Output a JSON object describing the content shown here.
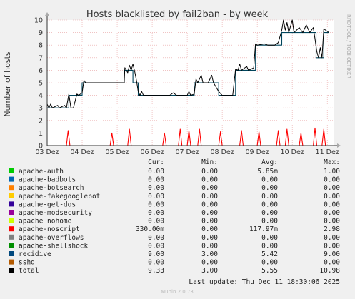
{
  "chart_data": {
    "type": "line",
    "title": "Hosts blacklisted by fail2ban - by week",
    "ylabel": "Number of hosts",
    "side_label": "RRDTOOL / TOBI OETIKER",
    "ylim": [
      0,
      10
    ],
    "yticks": [
      "0",
      "1",
      "2",
      "3",
      "4",
      "5",
      "6",
      "7",
      "8",
      "9",
      "10"
    ],
    "xlim": [
      0,
      8.2
    ],
    "xticks": [
      "03 Dez",
      "04 Dez",
      "05 Dez",
      "06 Dez",
      "07 Dez",
      "08 Dez",
      "09 Dez",
      "10 Dez",
      "11 Dez"
    ],
    "grid": true,
    "series": [
      {
        "name": "recidive",
        "color": "#00455c",
        "points": [
          [
            0,
            3
          ],
          [
            0.62,
            3
          ],
          [
            0.62,
            4
          ],
          [
            1.0,
            4
          ],
          [
            1.0,
            5
          ],
          [
            2.2,
            5
          ],
          [
            2.2,
            6
          ],
          [
            2.45,
            6
          ],
          [
            2.45,
            5
          ],
          [
            2.6,
            5
          ],
          [
            2.6,
            4
          ],
          [
            3.5,
            4
          ],
          [
            3.5,
            4
          ],
          [
            4.2,
            4
          ],
          [
            4.2,
            5
          ],
          [
            4.9,
            5
          ],
          [
            4.9,
            4
          ],
          [
            5.38,
            4
          ],
          [
            5.38,
            6
          ],
          [
            5.95,
            6
          ],
          [
            5.95,
            8
          ],
          [
            6.7,
            8
          ],
          [
            6.7,
            9
          ],
          [
            7.68,
            9
          ],
          [
            7.68,
            7
          ],
          [
            7.9,
            7
          ],
          [
            7.9,
            9
          ],
          [
            8.05,
            9
          ]
        ]
      },
      {
        "name": "total",
        "color": "#000000",
        "points": [
          [
            0,
            3.3
          ],
          [
            0.05,
            3
          ],
          [
            0.1,
            3.3
          ],
          [
            0.15,
            3
          ],
          [
            0.3,
            3.2
          ],
          [
            0.35,
            3
          ],
          [
            0.5,
            3.2
          ],
          [
            0.55,
            3
          ],
          [
            0.62,
            4.1
          ],
          [
            0.68,
            3
          ],
          [
            0.75,
            3
          ],
          [
            0.85,
            4.1
          ],
          [
            0.9,
            4
          ],
          [
            1.0,
            4.2
          ],
          [
            1.05,
            5.2
          ],
          [
            1.1,
            5
          ],
          [
            1.5,
            5
          ],
          [
            2.0,
            5
          ],
          [
            2.2,
            5
          ],
          [
            2.22,
            6.2
          ],
          [
            2.3,
            5.8
          ],
          [
            2.35,
            6.4
          ],
          [
            2.4,
            6
          ],
          [
            2.45,
            6.5
          ],
          [
            2.5,
            5.9
          ],
          [
            2.55,
            5.2
          ],
          [
            2.6,
            4.3
          ],
          [
            2.65,
            4
          ],
          [
            2.7,
            4.3
          ],
          [
            2.75,
            4
          ],
          [
            3.0,
            4
          ],
          [
            3.5,
            4
          ],
          [
            3.6,
            4.2
          ],
          [
            3.7,
            4
          ],
          [
            4.0,
            4
          ],
          [
            4.05,
            4.3
          ],
          [
            4.1,
            4
          ],
          [
            4.2,
            4.1
          ],
          [
            4.25,
            5.3
          ],
          [
            4.3,
            5
          ],
          [
            4.4,
            5.6
          ],
          [
            4.45,
            5
          ],
          [
            4.6,
            5
          ],
          [
            4.7,
            5.6
          ],
          [
            4.75,
            5
          ],
          [
            4.9,
            4.3
          ],
          [
            5.0,
            4
          ],
          [
            5.3,
            4
          ],
          [
            5.38,
            6.1
          ],
          [
            5.45,
            6
          ],
          [
            5.5,
            6.5
          ],
          [
            5.55,
            6
          ],
          [
            5.7,
            6.3
          ],
          [
            5.75,
            6
          ],
          [
            5.9,
            6.2
          ],
          [
            5.95,
            8.1
          ],
          [
            6.0,
            8
          ],
          [
            6.2,
            8.1
          ],
          [
            6.3,
            8
          ],
          [
            6.5,
            8
          ],
          [
            6.6,
            8.2
          ],
          [
            6.7,
            9.2
          ],
          [
            6.75,
            10
          ],
          [
            6.8,
            9.2
          ],
          [
            6.85,
            9.8
          ],
          [
            6.9,
            9
          ],
          [
            7.0,
            10
          ],
          [
            7.05,
            9
          ],
          [
            7.2,
            9.4
          ],
          [
            7.3,
            9
          ],
          [
            7.4,
            9.6
          ],
          [
            7.5,
            9
          ],
          [
            7.6,
            9.4
          ],
          [
            7.65,
            8.5
          ],
          [
            7.7,
            7.5
          ],
          [
            7.75,
            7
          ],
          [
            7.8,
            7.8
          ],
          [
            7.85,
            7
          ],
          [
            7.9,
            9.3
          ],
          [
            7.95,
            9.2
          ],
          [
            8.05,
            9
          ]
        ]
      },
      {
        "name": "apache-noscript",
        "color": "#ff0000",
        "points": [
          [
            0,
            0
          ],
          [
            0.55,
            0
          ],
          [
            0.6,
            1.2
          ],
          [
            0.65,
            0
          ],
          [
            1.8,
            0
          ],
          [
            1.85,
            1.0
          ],
          [
            1.9,
            0
          ],
          [
            2.3,
            0
          ],
          [
            2.35,
            1.3
          ],
          [
            2.4,
            0
          ],
          [
            3.3,
            0
          ],
          [
            3.35,
            1.0
          ],
          [
            3.4,
            0
          ],
          [
            3.75,
            0
          ],
          [
            3.8,
            1.3
          ],
          [
            3.85,
            0
          ],
          [
            4.0,
            0
          ],
          [
            4.05,
            1.2
          ],
          [
            4.1,
            0
          ],
          [
            4.3,
            0
          ],
          [
            4.35,
            1.3
          ],
          [
            4.4,
            0
          ],
          [
            4.9,
            0
          ],
          [
            4.95,
            1.1
          ],
          [
            5.0,
            0
          ],
          [
            5.5,
            0
          ],
          [
            5.55,
            1.2
          ],
          [
            5.6,
            0
          ],
          [
            6.0,
            0
          ],
          [
            6.05,
            1.1
          ],
          [
            6.1,
            0
          ],
          [
            6.55,
            0
          ],
          [
            6.6,
            1.2
          ],
          [
            6.65,
            0
          ],
          [
            6.8,
            0
          ],
          [
            6.85,
            1.3
          ],
          [
            6.9,
            0
          ],
          [
            7.2,
            0
          ],
          [
            7.25,
            1.0
          ],
          [
            7.3,
            0
          ],
          [
            7.6,
            0
          ],
          [
            7.65,
            1.4
          ],
          [
            7.7,
            0
          ],
          [
            7.85,
            0
          ],
          [
            7.9,
            1.3
          ],
          [
            7.95,
            0
          ],
          [
            8.05,
            0
          ]
        ]
      }
    ],
    "legend_headers": [
      "Cur:",
      "Min:",
      "Avg:",
      "Max:"
    ],
    "legend": [
      {
        "name": "apache-auth",
        "color": "#00cc00",
        "cur": "0.00",
        "min": "0.00",
        "avg": "5.85m",
        "max": "1.00"
      },
      {
        "name": "apache-badbots",
        "color": "#0066b3",
        "cur": "0.00",
        "min": "0.00",
        "avg": "0.00",
        "max": "0.00"
      },
      {
        "name": "apache-botsearch",
        "color": "#ff8000",
        "cur": "0.00",
        "min": "0.00",
        "avg": "0.00",
        "max": "0.00"
      },
      {
        "name": "apache-fakegooglebot",
        "color": "#ffcc00",
        "cur": "0.00",
        "min": "0.00",
        "avg": "0.00",
        "max": "0.00"
      },
      {
        "name": "apache-get-dos",
        "color": "#330099",
        "cur": "0.00",
        "min": "0.00",
        "avg": "0.00",
        "max": "0.00"
      },
      {
        "name": "apache-modsecurity",
        "color": "#990099",
        "cur": "0.00",
        "min": "0.00",
        "avg": "0.00",
        "max": "0.00"
      },
      {
        "name": "apache-nohome",
        "color": "#ccff00",
        "cur": "0.00",
        "min": "0.00",
        "avg": "0.00",
        "max": "0.00"
      },
      {
        "name": "apache-noscript",
        "color": "#ff0000",
        "cur": "330.00m",
        "min": "0.00",
        "avg": "117.97m",
        "max": "2.98"
      },
      {
        "name": "apache-overflows",
        "color": "#808080",
        "cur": "0.00",
        "min": "0.00",
        "avg": "0.00",
        "max": "0.00"
      },
      {
        "name": "apache-shellshock",
        "color": "#008f00",
        "cur": "0.00",
        "min": "0.00",
        "avg": "0.00",
        "max": "0.00"
      },
      {
        "name": "recidive",
        "color": "#00487d",
        "cur": "9.00",
        "min": "3.00",
        "avg": "5.42",
        "max": "9.00"
      },
      {
        "name": "sshd",
        "color": "#b35a00",
        "cur": "0.00",
        "min": "0.00",
        "avg": "0.00",
        "max": "0.00"
      },
      {
        "name": "total",
        "color": "#000000",
        "cur": "9.33",
        "min": "3.00",
        "avg": "5.55",
        "max": "10.98"
      }
    ],
    "last_update": "Last update: Thu Dec 11 18:30:06 2025",
    "footer": "Munin 2.0.73"
  }
}
